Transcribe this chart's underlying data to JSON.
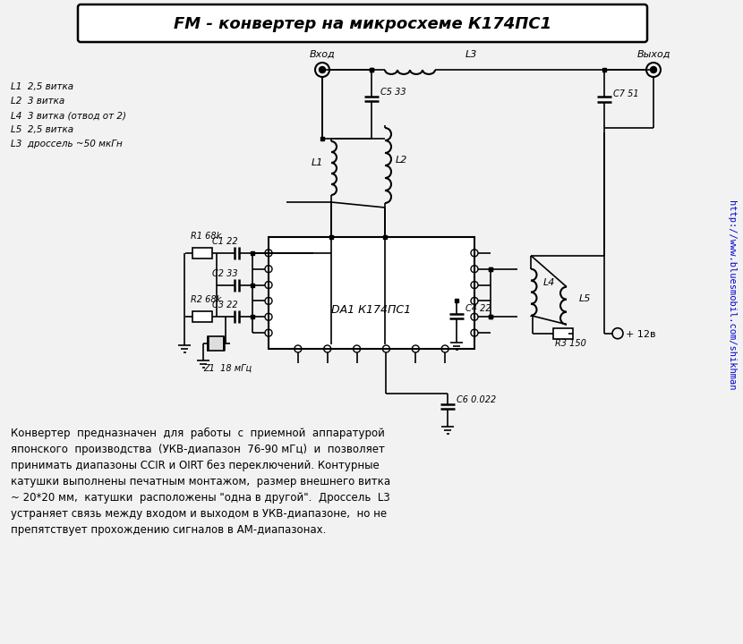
{
  "title": "FM - конвертер на микросхеме К174ПС1",
  "bg_color": "#f2f2f2",
  "line_color": "#000000",
  "sidebar_color": "#0000cc",
  "sidebar_text": "http://www.bluesmobil.com/shikhman",
  "legend_lines": [
    "L1  2,5 витка",
    "L2  3 витка",
    "L4  3 витка (отвод от 2)",
    "L5  2,5 витка",
    "L3  дроссель ~50 мкГн"
  ],
  "description_lines": [
    "Конвертер  предназначен  для  работы  с  приемной  аппаратурой",
    "японского  производства  (УКВ-диапазон  76-90 мГц)  и  позволяет",
    "принимать диапазоны CCIR и OIRT без переключений. Контурные",
    "катушки выполнены печатным монтажом,  размер внешнего витка",
    "~ 20*20 мм,  катушки  расположены \"одна в другой\".  Дроссель  L3",
    "устраняет связь между входом и выходом в УКВ-диапазоне,  но не",
    "препятствует прохождению сигналов в AM-диапазонах."
  ]
}
